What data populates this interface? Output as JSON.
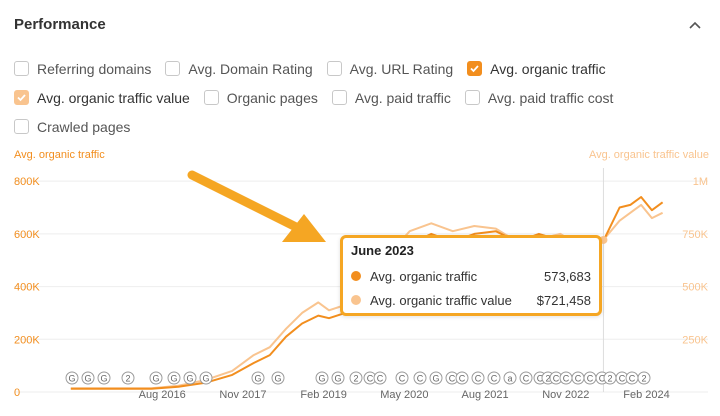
{
  "panel": {
    "title": "Performance"
  },
  "options": {
    "row1": [
      {
        "label": "Referring domains",
        "checked": false
      },
      {
        "label": "Avg. Domain Rating",
        "checked": false
      },
      {
        "label": "Avg. URL Rating",
        "checked": false
      },
      {
        "label": "Avg. organic traffic",
        "checked": true
      }
    ],
    "row2": [
      {
        "label": "Avg. organic traffic value",
        "checked": true
      },
      {
        "label": "Organic pages",
        "checked": false
      },
      {
        "label": "Avg. paid traffic",
        "checked": false
      },
      {
        "label": "Avg. paid traffic cost",
        "checked": false
      }
    ],
    "row3": [
      {
        "label": "Crawled pages",
        "checked": false
      }
    ]
  },
  "colors": {
    "traffic": "#f28e1e",
    "traffic_value": "#f9c48f",
    "highlight": "#f5a623"
  },
  "tooltip": {
    "title": "June 2023",
    "rows": [
      {
        "label": "Avg. organic traffic",
        "value": "573,683"
      },
      {
        "label": "Avg. organic traffic value",
        "value": "$721,458"
      }
    ]
  },
  "chart_data": {
    "type": "line",
    "left_axis_label": "Avg. organic traffic",
    "right_axis_label": "Avg. organic traffic value",
    "left_ticks": [
      "0",
      "200K",
      "400K",
      "600K",
      "800K"
    ],
    "right_ticks": [
      "250K",
      "500K",
      "750K",
      "1M"
    ],
    "x_ticks": [
      "Aug 2016",
      "Nov 2017",
      "Feb 2019",
      "May 2020",
      "Aug 2021",
      "Nov 2022",
      "Feb 2024"
    ],
    "ylim_left": [
      0,
      850000
    ],
    "ylim_right": [
      0,
      1062500
    ],
    "x": [
      "2015-03",
      "2016-01",
      "2016-06",
      "2016-11",
      "2017-04",
      "2017-09",
      "2018-01",
      "2018-04",
      "2018-07",
      "2018-10",
      "2019-01",
      "2019-03",
      "2019-06",
      "2019-10",
      "2020-02",
      "2020-06",
      "2020-10",
      "2021-02",
      "2021-06",
      "2021-10",
      "2022-02",
      "2022-06",
      "2022-10",
      "2023-01",
      "2023-04",
      "2023-06",
      "2023-09",
      "2023-11",
      "2024-01",
      "2024-03",
      "2024-05"
    ],
    "series": [
      {
        "name": "Avg. organic traffic",
        "axis": "left",
        "values": [
          12000,
          12000,
          12000,
          20000,
          35000,
          65000,
          110000,
          140000,
          210000,
          260000,
          290000,
          280000,
          300000,
          340000,
          470000,
          560000,
          600000,
          570000,
          600000,
          610000,
          570000,
          600000,
          575000,
          580000,
          560000,
          573683,
          700000,
          710000,
          740000,
          690000,
          720000
        ]
      },
      {
        "name": "Avg. organic traffic value",
        "axis": "left",
        "values": [
          14000,
          14000,
          14000,
          24000,
          45000,
          80000,
          140000,
          170000,
          240000,
          300000,
          340000,
          310000,
          330000,
          380000,
          520000,
          610000,
          640000,
          610000,
          630000,
          620000,
          570000,
          580000,
          600000,
          560000,
          540000,
          577000,
          650000,
          680000,
          710000,
          660000,
          680000
        ]
      }
    ],
    "highlight_x": "2023-06",
    "annotation_markers": [
      "G",
      "G",
      "G",
      "2",
      "G",
      "G",
      "G",
      "G",
      "G",
      "G",
      "G",
      "G",
      "2",
      "C",
      "C",
      "C",
      "C",
      "G",
      "C",
      "C",
      "C",
      "C",
      "a",
      "C",
      "C",
      "2",
      "C",
      "C",
      "C",
      "C",
      "C",
      "2",
      "C",
      "C",
      "2",
      "C",
      "C",
      "C",
      "2",
      "a"
    ]
  }
}
